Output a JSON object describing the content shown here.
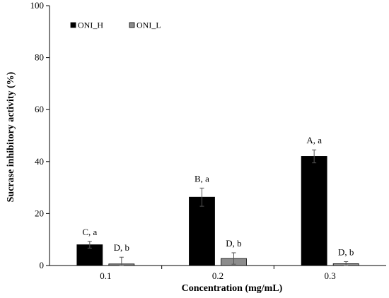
{
  "chart_data": {
    "type": "bar",
    "categories": [
      "0.1",
      "0.2",
      "0.3"
    ],
    "series": [
      {
        "name": "ONI_H",
        "color": "#000000",
        "values": [
          8.0,
          26.3,
          42.0
        ],
        "errors": [
          1.3,
          3.5,
          2.5
        ],
        "labels": [
          "C, a",
          "B, a",
          "A, a"
        ]
      },
      {
        "name": "ONI_L",
        "color": "#8c8c8c",
        "values": [
          0.6,
          2.7,
          0.7
        ],
        "errors": [
          2.6,
          2.2,
          0.8
        ],
        "labels": [
          "D, b",
          "D, b",
          "D, b"
        ]
      }
    ],
    "xlabel": "Concentration (mg/mL)",
    "ylabel": "Sucrase inhibitory activity (%)",
    "ylim": [
      0,
      100
    ],
    "yticks": [
      0,
      20,
      40,
      60,
      80,
      100
    ],
    "grid": false,
    "legend_position": "top-left"
  }
}
